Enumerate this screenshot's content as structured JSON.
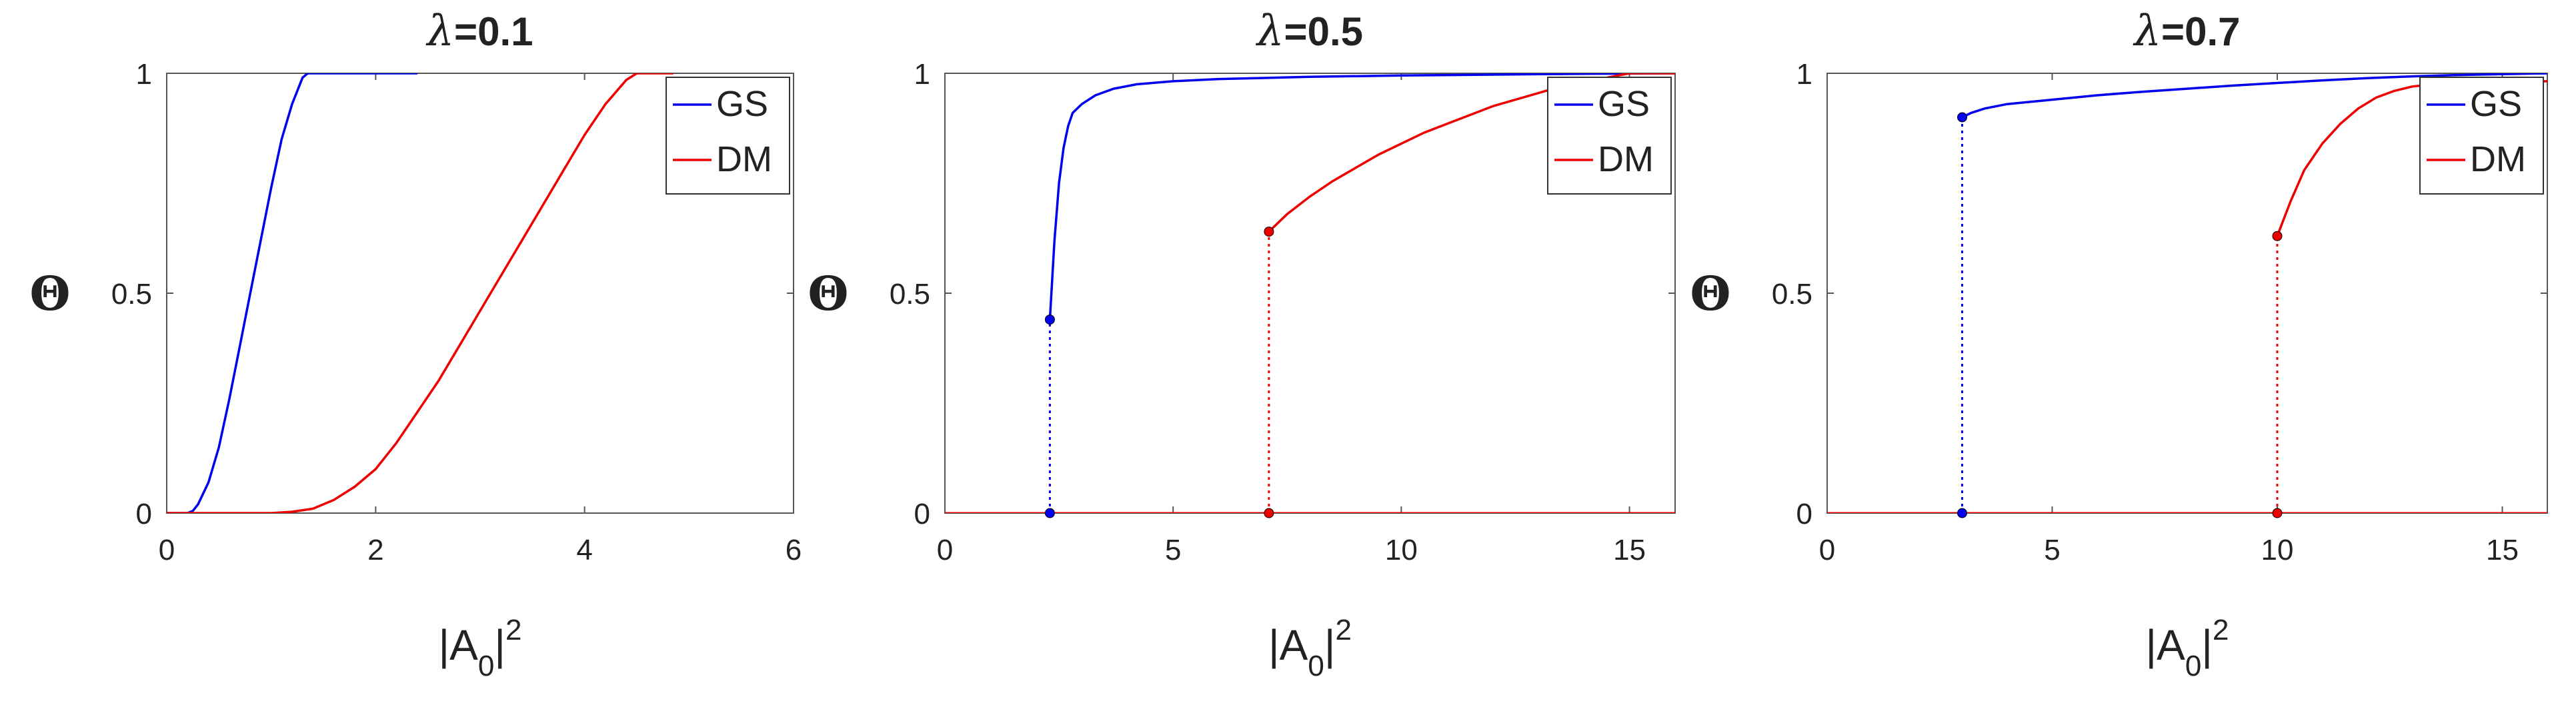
{
  "chart_data": [
    {
      "type": "line",
      "title_symbol": "λ",
      "title_value": "=0.1",
      "xlabel": {
        "main": "|A",
        "sub": "0",
        "tail": "|",
        "sup": "2"
      },
      "ylabel": "Θ",
      "xlim": [
        0,
        6
      ],
      "ylim": [
        0,
        1
      ],
      "xticks": [
        0,
        2,
        4,
        6
      ],
      "yticks": [
        0,
        0.5,
        1
      ],
      "xtick_labels": [
        "0",
        "2",
        "4",
        "6"
      ],
      "ytick_labels": [
        "0",
        "0.5",
        "1"
      ],
      "legend_position": "top-right",
      "series": [
        {
          "name": "GS",
          "color": "#0000ee",
          "x": [
            0,
            0.2,
            0.25,
            0.3,
            0.4,
            0.5,
            0.6,
            0.7,
            0.8,
            0.9,
            1.0,
            1.1,
            1.2,
            1.3,
            1.35,
            1.4,
            1.6,
            2.0,
            2.4
          ],
          "y": [
            0,
            0,
            0.005,
            0.02,
            0.07,
            0.15,
            0.26,
            0.38,
            0.5,
            0.62,
            0.74,
            0.85,
            0.93,
            0.99,
            1.0,
            1.0,
            1.0,
            1.0,
            1.0
          ]
        },
        {
          "name": "DM",
          "color": "#ee0000",
          "x": [
            0,
            1.0,
            1.2,
            1.4,
            1.6,
            1.8,
            2.0,
            2.2,
            2.4,
            2.6,
            2.8,
            3.0,
            3.2,
            3.4,
            3.6,
            3.8,
            4.0,
            4.2,
            4.4,
            4.5,
            4.6,
            4.7,
            4.85
          ],
          "y": [
            0,
            0,
            0.003,
            0.01,
            0.03,
            0.06,
            0.1,
            0.16,
            0.23,
            0.3,
            0.38,
            0.46,
            0.54,
            0.62,
            0.7,
            0.78,
            0.86,
            0.93,
            0.985,
            1.0,
            1.0,
            1.0,
            1.0
          ]
        }
      ],
      "transitions": []
    },
    {
      "type": "line",
      "title_symbol": "λ",
      "title_value": "=0.5",
      "xlabel": {
        "main": "|A",
        "sub": "0",
        "tail": "|",
        "sup": "2"
      },
      "ylabel": "Θ",
      "xlim": [
        0,
        16
      ],
      "ylim": [
        0,
        1
      ],
      "xticks": [
        0,
        5,
        10,
        15
      ],
      "yticks": [
        0,
        0.5,
        1
      ],
      "xtick_labels": [
        "0",
        "5",
        "10",
        "15"
      ],
      "ytick_labels": [
        "0",
        "0.5",
        "1"
      ],
      "legend_position": "top-right",
      "series": [
        {
          "name": "GS",
          "color": "#0000ee",
          "x": [
            2.3,
            2.4,
            2.5,
            2.6,
            2.7,
            2.8,
            3.0,
            3.3,
            3.7,
            4.2,
            5.0,
            6.0,
            8.0,
            10.0,
            12.0,
            14.0,
            16.0
          ],
          "y": [
            0.44,
            0.62,
            0.75,
            0.83,
            0.88,
            0.91,
            0.93,
            0.95,
            0.965,
            0.975,
            0.982,
            0.987,
            0.992,
            0.995,
            0.997,
            0.999,
            1.0
          ]
        },
        {
          "name": "DM",
          "color": "#ee0000",
          "x": [
            7.1,
            7.5,
            8.0,
            8.5,
            9.0,
            9.5,
            10.0,
            10.5,
            11.0,
            11.5,
            12.0,
            12.5,
            13.0,
            13.5,
            14.0,
            14.5,
            15.0,
            15.5,
            16.0
          ],
          "y": [
            0.64,
            0.68,
            0.72,
            0.755,
            0.785,
            0.815,
            0.84,
            0.865,
            0.885,
            0.905,
            0.925,
            0.94,
            0.955,
            0.97,
            0.98,
            0.99,
            1.0,
            1.0,
            1.0
          ]
        }
      ],
      "baseline": {
        "color": "#ee0000",
        "x": [
          0,
          16
        ],
        "y": 0
      },
      "transitions": [
        {
          "color": "#0000ee",
          "x": 2.3,
          "y_low": 0,
          "y_high": 0.44
        },
        {
          "color": "#ee0000",
          "x": 7.1,
          "y_low": 0,
          "y_high": 0.64
        }
      ]
    },
    {
      "type": "line",
      "title_symbol": "λ",
      "title_value": "=0.7",
      "xlabel": {
        "main": "|A",
        "sub": "0",
        "tail": "|",
        "sup": "2"
      },
      "ylabel": "Θ",
      "xlim": [
        0,
        16
      ],
      "ylim": [
        0,
        1
      ],
      "xticks": [
        0,
        5,
        10,
        15
      ],
      "yticks": [
        0,
        0.5,
        1
      ],
      "xtick_labels": [
        "0",
        "5",
        "10",
        "15"
      ],
      "ytick_labels": [
        "0",
        "0.5",
        "1"
      ],
      "legend_position": "top-right",
      "series": [
        {
          "name": "GS",
          "color": "#0000ee",
          "x": [
            3.0,
            3.2,
            3.5,
            4.0,
            5.0,
            6.0,
            7.0,
            8.0,
            9.0,
            10.0,
            11.0,
            12.0,
            13.0,
            14.0,
            15.0,
            16.0
          ],
          "y": [
            0.9,
            0.91,
            0.92,
            0.93,
            0.94,
            0.95,
            0.958,
            0.965,
            0.972,
            0.978,
            0.984,
            0.989,
            0.993,
            0.996,
            0.998,
            1.0
          ]
        },
        {
          "name": "DM",
          "color": "#ee0000",
          "x": [
            10.0,
            10.3,
            10.6,
            11.0,
            11.4,
            11.8,
            12.2,
            12.6,
            13.0,
            13.5,
            14.0,
            15.0,
            16.0
          ],
          "y": [
            0.63,
            0.71,
            0.78,
            0.84,
            0.885,
            0.92,
            0.945,
            0.96,
            0.97,
            0.975,
            0.978,
            0.98,
            0.982
          ]
        }
      ],
      "baseline": {
        "color": "#ee0000",
        "x": [
          0,
          16
        ],
        "y": 0
      },
      "transitions": [
        {
          "color": "#0000ee",
          "x": 3.0,
          "y_low": 0,
          "y_high": 0.9
        },
        {
          "color": "#ee0000",
          "x": 10.0,
          "y_low": 0,
          "y_high": 0.63
        }
      ]
    }
  ]
}
